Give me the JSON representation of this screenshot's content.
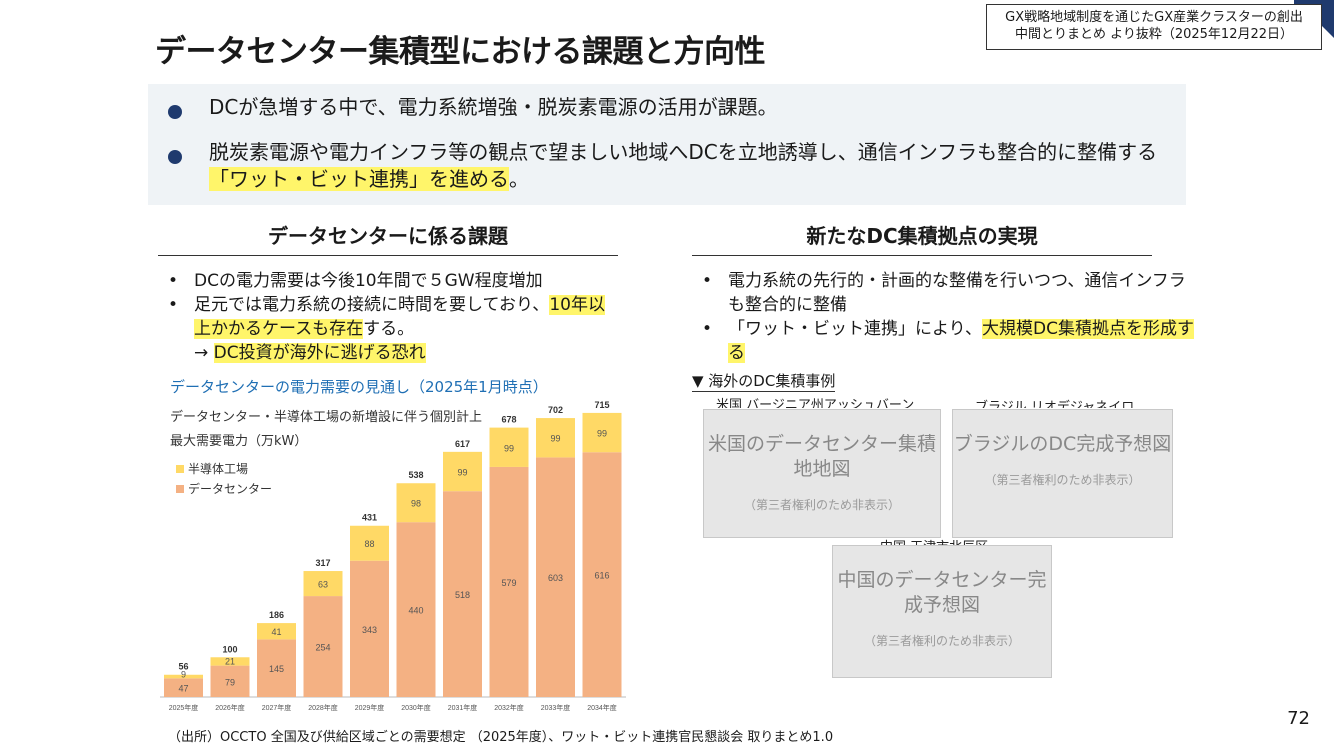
{
  "source_box": {
    "line1": "GX戦略地域制度を通じたGX産業クラスターの創出",
    "line2": "中間とりまとめ より抜粋（2025年12月22日）"
  },
  "title": "データセンター集積型における課題と方向性",
  "summary": {
    "bullet1": "DCが急増する中で、電力系統増強・脱炭素電源の活用が課題。",
    "bullet2_a": "脱炭素電源や電力インフラ等の観点で望ましい地域へDCを立地誘導し、通信インフラも整合的に整備する",
    "bullet2_hl": "「ワット・ビット連携」を進める",
    "bullet2_end": "。"
  },
  "left": {
    "heading": "データセンターに係る課題",
    "b1": "DCの電力需要は今後10年間で５GW程度増加",
    "b2_a": "足元では電力系統の接続に時間を要しており、",
    "b2_hl": "10年以上かかるケースも存在",
    "b2_b": "する。",
    "arrow": "→",
    "b3_hl": "DC投資が海外に逃げる恐れ"
  },
  "right": {
    "heading": "新たなDC集積拠点の実現",
    "b1": "電力系統の先行的・計画的な整備を行いつつ、通信インフラも整合的に整備",
    "b2_a": "「ワット・ビット連携」により、",
    "b2_hl": "大規模DC集積拠点を形成する",
    "cases_label": "▼ 海外のDC集積事例",
    "case1_caption": "米国 バージニア州アッシュバーン",
    "case2_caption": "ブラジル リオデジャネイロ",
    "case3_caption": "中国 天津市北辰区",
    "ph1": "米国のデータセンター集積地地図",
    "ph2": "ブラジルのDC完成予想図",
    "ph3": "中国のデータセンター完成予想図",
    "ph_note": "（第三者権利のため非表示）"
  },
  "chart": {
    "title": "データセンターの電力需要の見通し（2025年1月時点）",
    "subtitle1": "データセンター・半導体工場の新増設に伴う個別計上",
    "subtitle2": "最大需要電力（万kW）",
    "legend_semi": "半導体工場",
    "legend_dc": "データセンター"
  },
  "chart_data": {
    "type": "bar",
    "stacked": true,
    "categories": [
      "2025年度",
      "2026年度",
      "2027年度",
      "2028年度",
      "2029年度",
      "2030年度",
      "2031年度",
      "2032年度",
      "2033年度",
      "2034年度"
    ],
    "series": [
      {
        "name": "データセンター",
        "color": "#f4b183",
        "values": [
          47,
          79,
          145,
          254,
          343,
          440,
          518,
          579,
          603,
          616
        ]
      },
      {
        "name": "半導体工場",
        "color": "#ffd966",
        "values": [
          9,
          21,
          41,
          63,
          88,
          98,
          99,
          99,
          99,
          99
        ]
      }
    ],
    "totals": [
      56,
      100,
      186,
      317,
      431,
      538,
      617,
      678,
      702,
      715
    ],
    "ylim": [
      0,
      750
    ],
    "title": "データセンターの電力需要の見通し（2025年1月時点）",
    "ylabel": "最大需要電力（万kW）"
  },
  "footer": "（出所）OCCTO 全国及び供給区域ごとの需要想定 （2025年度）、ワット・ビット連携官民懇談会 取りまとめ1.0",
  "page_number": "72",
  "colors": {
    "accent": "#1f3a6e",
    "highlight": "#fff56a",
    "dc": "#f4b183",
    "semi": "#ffd966"
  }
}
